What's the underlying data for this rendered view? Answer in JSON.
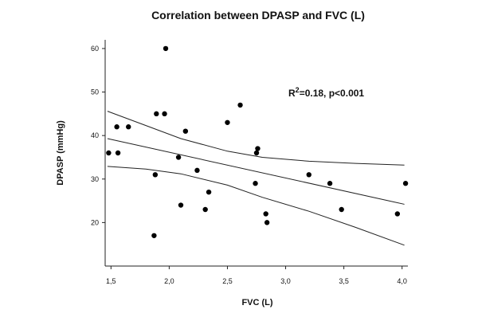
{
  "chart_data": {
    "type": "scatter",
    "title": "Correlation between DPASP and FVC (L)",
    "xlabel": "FVC (L)",
    "ylabel": "DPASP (mmHg)",
    "xlim": [
      1.45,
      4.05
    ],
    "ylim": [
      10,
      62
    ],
    "x_ticks": [
      {
        "value": 1.5,
        "label": "1,5"
      },
      {
        "value": 2.0,
        "label": "2,0"
      },
      {
        "value": 2.5,
        "label": "2,5"
      },
      {
        "value": 3.0,
        "label": "3,0"
      },
      {
        "value": 3.5,
        "label": "3,5"
      },
      {
        "value": 4.0,
        "label": "4,0"
      }
    ],
    "y_ticks": [
      {
        "value": 20,
        "label": "20"
      },
      {
        "value": 30,
        "label": "30"
      },
      {
        "value": 40,
        "label": "40"
      },
      {
        "value": 50,
        "label": "50"
      },
      {
        "value": 60,
        "label": "60"
      }
    ],
    "annotation": {
      "r_label": "R",
      "r_sup": "2",
      "rest": "=0.18, p<0.001"
    },
    "points": [
      {
        "x": 1.48,
        "y": 36
      },
      {
        "x": 1.55,
        "y": 42
      },
      {
        "x": 1.56,
        "y": 36
      },
      {
        "x": 1.65,
        "y": 42
      },
      {
        "x": 1.87,
        "y": 17
      },
      {
        "x": 1.88,
        "y": 31
      },
      {
        "x": 1.89,
        "y": 45
      },
      {
        "x": 1.96,
        "y": 45
      },
      {
        "x": 1.97,
        "y": 60
      },
      {
        "x": 2.08,
        "y": 35
      },
      {
        "x": 2.1,
        "y": 24
      },
      {
        "x": 2.14,
        "y": 41
      },
      {
        "x": 2.24,
        "y": 32
      },
      {
        "x": 2.31,
        "y": 23
      },
      {
        "x": 2.34,
        "y": 27
      },
      {
        "x": 2.5,
        "y": 43
      },
      {
        "x": 2.61,
        "y": 47
      },
      {
        "x": 2.74,
        "y": 29
      },
      {
        "x": 2.75,
        "y": 36
      },
      {
        "x": 2.76,
        "y": 37
      },
      {
        "x": 2.83,
        "y": 22
      },
      {
        "x": 2.84,
        "y": 20
      },
      {
        "x": 3.2,
        "y": 31
      },
      {
        "x": 3.38,
        "y": 29
      },
      {
        "x": 3.48,
        "y": 23
      },
      {
        "x": 3.96,
        "y": 22
      },
      {
        "x": 4.03,
        "y": 29
      }
    ],
    "regression": {
      "x": [
        1.47,
        4.02
      ],
      "y": [
        39.3,
        24.2
      ]
    },
    "ci_upper": [
      {
        "x": 1.47,
        "y": 45.6
      },
      {
        "x": 1.8,
        "y": 42.3
      },
      {
        "x": 2.1,
        "y": 39.3
      },
      {
        "x": 2.5,
        "y": 36.4
      },
      {
        "x": 2.8,
        "y": 35.0
      },
      {
        "x": 3.2,
        "y": 34.1
      },
      {
        "x": 3.6,
        "y": 33.6
      },
      {
        "x": 4.02,
        "y": 33.2
      }
    ],
    "ci_lower": [
      {
        "x": 1.47,
        "y": 32.9
      },
      {
        "x": 1.8,
        "y": 32.3
      },
      {
        "x": 2.1,
        "y": 31.2
      },
      {
        "x": 2.5,
        "y": 28.6
      },
      {
        "x": 2.8,
        "y": 25.8
      },
      {
        "x": 3.2,
        "y": 22.6
      },
      {
        "x": 3.6,
        "y": 18.9
      },
      {
        "x": 4.02,
        "y": 14.8
      }
    ],
    "grid": false,
    "legend": "none"
  }
}
